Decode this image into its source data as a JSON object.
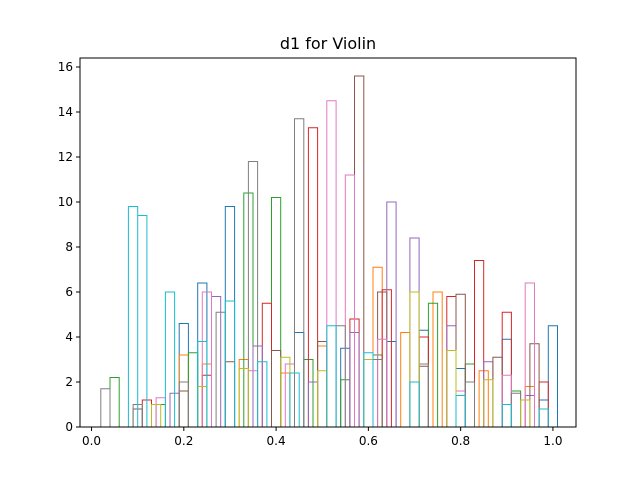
{
  "chart_data": {
    "type": "histogram-step",
    "title": "d1 for Violin",
    "xlabel": "",
    "ylabel": "",
    "xlim": [
      -0.025,
      1.05
    ],
    "ylim": [
      0,
      16.4
    ],
    "xticks": [
      0.0,
      0.2,
      0.4,
      0.6,
      0.8,
      1.0
    ],
    "xtick_labels": [
      "0.0",
      "0.2",
      "0.4",
      "0.6",
      "0.8",
      "1.0"
    ],
    "yticks": [
      0,
      2,
      4,
      6,
      8,
      10,
      12,
      14,
      16
    ],
    "ytick_labels": [
      "0",
      "2",
      "4",
      "6",
      "8",
      "10",
      "12",
      "14",
      "16"
    ],
    "grid": false,
    "legend": "none",
    "colors": [
      "#1f77b4",
      "#ff7f0e",
      "#2ca02c",
      "#d62728",
      "#9467bd",
      "#8c564b",
      "#e377c2",
      "#7f7f7f",
      "#bcbd22",
      "#17becf"
    ],
    "series": [
      {
        "color": "#1f77b4",
        "x": [
          0.2,
          0.24,
          0.3,
          0.45,
          0.55,
          0.65,
          0.72,
          0.8,
          0.9,
          0.98,
          1.0
        ],
        "y": [
          4.6,
          6.4,
          9.8,
          4.2,
          3.5,
          3.8,
          4.3,
          2.6,
          3.9,
          1.2,
          4.5
        ]
      },
      {
        "color": "#ff7f0e",
        "x": [
          0.2,
          0.25,
          0.33,
          0.42,
          0.5,
          0.62,
          0.68,
          0.75,
          0.85,
          0.95
        ],
        "y": [
          3.2,
          2.8,
          3.0,
          2.4,
          3.6,
          7.1,
          4.2,
          6.0,
          2.5,
          1.8
        ]
      },
      {
        "color": "#2ca02c",
        "x": [
          0.05,
          0.15,
          0.22,
          0.34,
          0.4,
          0.47,
          0.55,
          0.62,
          0.74,
          0.82,
          0.92
        ],
        "y": [
          2.2,
          1.0,
          3.3,
          10.4,
          10.2,
          3.0,
          2.1,
          3.2,
          5.5,
          2.8,
          1.6
        ]
      },
      {
        "color": "#d62728",
        "x": [
          0.12,
          0.25,
          0.38,
          0.48,
          0.57,
          0.64,
          0.72,
          0.78,
          0.84,
          0.9,
          0.98
        ],
        "y": [
          1.2,
          2.3,
          5.5,
          13.3,
          4.8,
          6.1,
          4.0,
          5.8,
          7.4,
          5.1,
          2.0
        ]
      },
      {
        "color": "#9467bd",
        "x": [
          0.18,
          0.27,
          0.36,
          0.48,
          0.57,
          0.65,
          0.7,
          0.78,
          0.86,
          0.95
        ],
        "y": [
          1.5,
          5.8,
          3.6,
          2.0,
          4.2,
          10.0,
          8.4,
          4.5,
          2.9,
          1.4
        ]
      },
      {
        "color": "#8c564b",
        "x": [
          0.1,
          0.2,
          0.3,
          0.4,
          0.5,
          0.58,
          0.63,
          0.72,
          0.8,
          0.88,
          0.96
        ],
        "y": [
          0.8,
          1.6,
          2.9,
          3.4,
          3.8,
          15.6,
          6.0,
          2.7,
          5.9,
          3.1,
          3.7
        ]
      },
      {
        "color": "#e377c2",
        "x": [
          0.15,
          0.25,
          0.35,
          0.43,
          0.52,
          0.56,
          0.63,
          0.7,
          0.8,
          0.9,
          0.95
        ],
        "y": [
          1.3,
          6.0,
          2.5,
          2.8,
          14.5,
          11.2,
          3.9,
          2.0,
          1.6,
          2.3,
          6.4
        ]
      },
      {
        "color": "#7f7f7f",
        "x": [
          0.03,
          0.1,
          0.2,
          0.28,
          0.35,
          0.45,
          0.54,
          0.62,
          0.72,
          0.82,
          0.92
        ],
        "y": [
          1.7,
          1.0,
          2.0,
          5.1,
          11.8,
          13.7,
          4.5,
          3.0,
          2.8,
          2.0,
          1.5
        ]
      },
      {
        "color": "#bcbd22",
        "x": [
          0.14,
          0.24,
          0.33,
          0.42,
          0.5,
          0.6,
          0.7,
          0.78,
          0.86,
          0.94
        ],
        "y": [
          1.0,
          1.8,
          2.6,
          3.1,
          2.5,
          3.0,
          6.0,
          3.4,
          2.1,
          1.2
        ]
      },
      {
        "color": "#17becf",
        "x": [
          0.09,
          0.11,
          0.17,
          0.24,
          0.3,
          0.37,
          0.44,
          0.52,
          0.6,
          0.7,
          0.8,
          0.9,
          0.98
        ],
        "y": [
          9.8,
          9.4,
          6.0,
          3.8,
          5.6,
          2.9,
          2.4,
          4.5,
          3.3,
          2.0,
          1.4,
          1.0,
          0.8
        ]
      }
    ]
  }
}
